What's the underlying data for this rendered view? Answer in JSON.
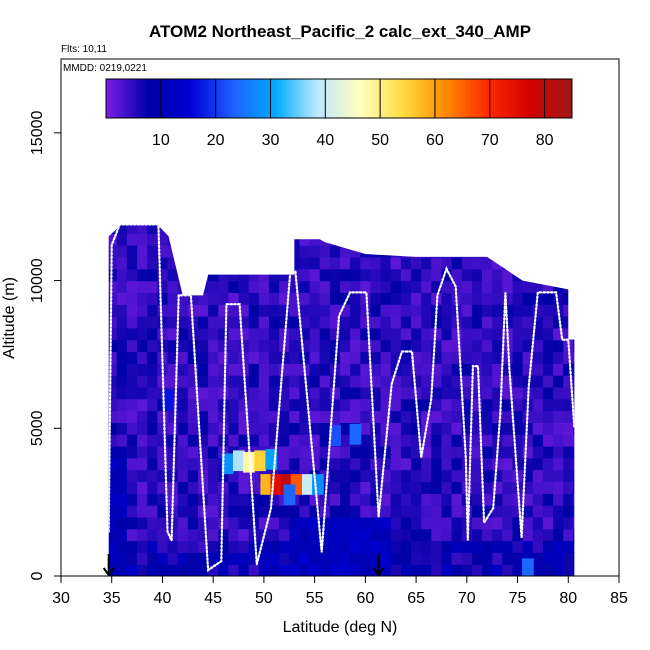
{
  "chart_data": {
    "type": "heatmap",
    "title": "ATOM2 Northeast_Pacific_2 calc_ext_340_AMP",
    "flights_label": "Flts: 10,11",
    "dates_label": "MMDD: 0219,0221",
    "xlabel": "Latitude (deg N)",
    "ylabel": "Altitude (m)",
    "xlim": [
      30,
      85
    ],
    "ylim": [
      0,
      17500
    ],
    "x_ticks": [
      30,
      35,
      40,
      45,
      50,
      55,
      60,
      65,
      70,
      75,
      80,
      85
    ],
    "y_ticks": [
      0,
      5000,
      10000,
      15000
    ],
    "colorbar": {
      "range": [
        0,
        85
      ],
      "tick_values": [
        10,
        20,
        30,
        40,
        50,
        60,
        70,
        80
      ],
      "tick_labels": [
        "10",
        "20",
        "30",
        "40",
        "50",
        "60",
        "70",
        "80"
      ],
      "colors": [
        "#7b1fe6",
        "#0000a6",
        "#0000d8",
        "#1f5fff",
        "#00aaff",
        "#bfe8ff",
        "#ffffc0",
        "#ffdc40",
        "#ff8c00",
        "#ff2a00",
        "#d40000",
        "#a01818"
      ]
    },
    "arrows_at_latitude": [
      34.7,
      61.3
    ],
    "high_value_cells": [
      {
        "lat": 46.4,
        "alt": 3800,
        "value": 28
      },
      {
        "lat": 47.5,
        "alt": 3900,
        "value": 38
      },
      {
        "lat": 48.5,
        "alt": 3850,
        "value": 48
      },
      {
        "lat": 49.6,
        "alt": 3900,
        "value": 55
      },
      {
        "lat": 50.7,
        "alt": 3950,
        "value": 30
      },
      {
        "lat": 50.2,
        "alt": 3100,
        "value": 58
      },
      {
        "lat": 51.2,
        "alt": 3100,
        "value": 75
      },
      {
        "lat": 52.2,
        "alt": 3100,
        "value": 80
      },
      {
        "lat": 53.2,
        "alt": 3100,
        "value": 66
      },
      {
        "lat": 54.3,
        "alt": 3100,
        "value": 40
      },
      {
        "lat": 55.3,
        "alt": 3100,
        "value": 28
      },
      {
        "lat": 52.5,
        "alt": 2750,
        "value": 24
      },
      {
        "lat": 57.0,
        "alt": 4750,
        "value": 22
      },
      {
        "lat": 59.0,
        "alt": 4800,
        "value": 24
      },
      {
        "lat": 76.0,
        "alt": 250,
        "value": 24
      },
      {
        "lat": 40.5,
        "alt": 5950,
        "value": 17
      }
    ]
  }
}
